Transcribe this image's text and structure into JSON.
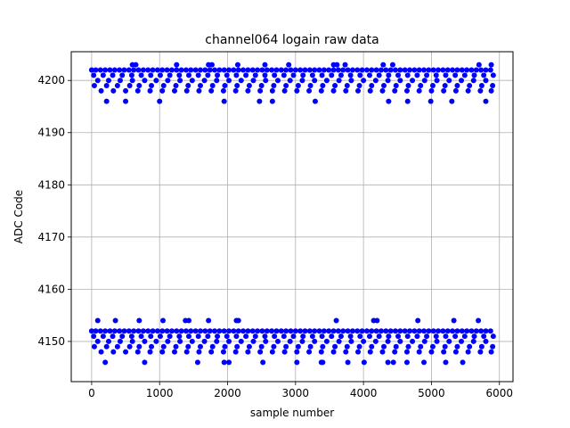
{
  "chart_data": {
    "type": "scatter",
    "title": "channel064 logain raw data",
    "xlabel": "sample number",
    "ylabel": "ADC Code",
    "xlim": [
      -300,
      6200
    ],
    "ylim": [
      4142.3,
      4205.5
    ],
    "xticks": [
      0,
      1000,
      2000,
      3000,
      4000,
      5000,
      6000
    ],
    "yticks": [
      4150,
      4160,
      4170,
      4180,
      4190,
      4200
    ],
    "grid": true,
    "marker_color": "#0000ff",
    "series": [
      {
        "x": [
          0,
          60,
          130,
          200,
          270,
          340,
          410,
          480,
          550,
          620,
          690,
          760,
          830,
          900,
          970,
          1040,
          1110,
          1180,
          1250,
          1320,
          1390,
          1460,
          1530,
          1600,
          1670,
          1740,
          1810,
          1880,
          1950,
          2020,
          2090,
          2160,
          2230,
          2300,
          2370,
          2440,
          2510,
          2580,
          2650,
          2720,
          2790,
          2860,
          2930,
          3000,
          3070,
          3140,
          3210,
          3280,
          3350,
          3420,
          3490,
          3560,
          3630,
          3700,
          3770,
          3840,
          3910,
          3980,
          4050,
          4120,
          4190,
          4260,
          4330,
          4400,
          4470,
          4540,
          4610,
          4680,
          4750,
          4820,
          4890,
          4960,
          5030,
          5100,
          5170,
          5240,
          5310,
          5380,
          5450,
          5520,
          5590,
          5660,
          5730,
          5800,
          5870,
          30,
          170,
          310,
          450,
          590,
          730,
          870,
          1010,
          1150,
          1290,
          1430,
          1570,
          1710,
          1850,
          1990,
          2130,
          2270,
          2410,
          2550,
          2690,
          2830,
          2970,
          3110,
          3250,
          3390,
          3530,
          3670,
          3810,
          3950,
          4090,
          4230,
          4370,
          4510,
          4650,
          4790,
          4930,
          5070,
          5210,
          5350,
          5490,
          5630,
          5770,
          5910,
          90,
          250,
          420,
          600,
          780,
          950,
          1120,
          1300,
          1480,
          1660,
          1840,
          2020,
          2200,
          2380,
          2560,
          2740,
          2920,
          3100,
          3280,
          3460,
          3640,
          3820,
          4000,
          4180,
          4360,
          4540,
          4720,
          4900,
          5080,
          5260,
          5440,
          5620,
          5800,
          40,
          220,
          380,
          560,
          700,
          880,
          1060,
          1240,
          1420,
          1600,
          1780,
          1960,
          2140,
          2320,
          2500,
          2680,
          2860,
          3040,
          3220,
          3400,
          3580,
          3760,
          3940,
          4120,
          4300,
          4480,
          4660,
          4840,
          5020,
          5200,
          5380,
          5560,
          5740,
          5900,
          140,
          320,
          500,
          680,
          860,
          1040,
          1220,
          1400,
          1580,
          1760,
          1940,
          2120,
          2300,
          2480,
          2660,
          2840,
          3020,
          3200,
          3380,
          3560,
          3740,
          3920,
          4100,
          4280,
          4460,
          4640,
          4820,
          5000,
          5180,
          5360,
          5540,
          5720,
          5880,
          600,
          650,
          1250,
          1720,
          1770,
          2150,
          2550,
          2900,
          3560,
          3610,
          3730,
          4290,
          4430,
          5700,
          5880,
          220,
          500,
          1000,
          1950,
          2470,
          2660,
          3290,
          4370,
          4650,
          4990,
          5300,
          5800,
          0,
          60,
          130,
          200,
          270,
          340,
          410,
          480,
          550,
          620,
          690,
          760,
          830,
          900,
          970,
          1040,
          1110,
          1180,
          1250,
          1320,
          1390,
          1460,
          1530,
          1600,
          1670,
          1740,
          1810,
          1880,
          1950,
          2020,
          2090,
          2160,
          2230,
          2300,
          2370,
          2440,
          2510,
          2580,
          2650,
          2720,
          2790,
          2860,
          2930,
          3000,
          3070,
          3140,
          3210,
          3280,
          3350,
          3420,
          3490,
          3560,
          3630,
          3700,
          3770,
          3840,
          3910,
          3980,
          4050,
          4120,
          4190,
          4260,
          4330,
          4400,
          4470,
          4540,
          4610,
          4680,
          4750,
          4820,
          4890,
          4960,
          5030,
          5100,
          5170,
          5240,
          5310,
          5380,
          5450,
          5520,
          5590,
          5660,
          5730,
          5800,
          5870,
          30,
          170,
          310,
          450,
          590,
          730,
          870,
          1010,
          1150,
          1290,
          1430,
          1570,
          1710,
          1850,
          1990,
          2130,
          2270,
          2410,
          2550,
          2690,
          2830,
          2970,
          3110,
          3250,
          3390,
          3530,
          3670,
          3810,
          3950,
          4090,
          4230,
          4370,
          4510,
          4650,
          4790,
          4930,
          5070,
          5210,
          5350,
          5490,
          5630,
          5770,
          5910,
          90,
          250,
          420,
          600,
          780,
          950,
          1120,
          1300,
          1480,
          1660,
          1840,
          2020,
          2200,
          2380,
          2560,
          2740,
          2920,
          3100,
          3280,
          3460,
          3640,
          3820,
          4000,
          4180,
          4360,
          4540,
          4720,
          4900,
          5080,
          5260,
          5440,
          5620,
          5800,
          40,
          220,
          380,
          560,
          700,
          880,
          1060,
          1240,
          1420,
          1600,
          1780,
          1960,
          2140,
          2320,
          2500,
          2680,
          2860,
          3040,
          3220,
          3400,
          3580,
          3760,
          3940,
          4120,
          4300,
          4480,
          4660,
          4840,
          5020,
          5200,
          5380,
          5560,
          5740,
          5900,
          140,
          320,
          500,
          680,
          860,
          1040,
          1220,
          1400,
          1580,
          1760,
          1940,
          2120,
          2300,
          2480,
          2660,
          2840,
          3020,
          3200,
          3380,
          3560,
          3740,
          3920,
          4100,
          4280,
          4460,
          4640,
          4820,
          5000,
          5180,
          5360,
          5540,
          5720,
          5880,
          90,
          350,
          700,
          1050,
          1380,
          1430,
          1720,
          2130,
          2160,
          3600,
          4150,
          4200,
          4800,
          5330,
          5690,
          200,
          780,
          1560,
          1950,
          2020,
          2520,
          3020,
          3380,
          3400,
          3770,
          4010,
          4360,
          4440,
          4640,
          4890,
          5210,
          5460
        ],
        "y": [
          4202,
          4202,
          4202,
          4202,
          4202,
          4202,
          4202,
          4202,
          4202,
          4202,
          4202,
          4202,
          4202,
          4202,
          4202,
          4202,
          4202,
          4202,
          4202,
          4202,
          4202,
          4202,
          4202,
          4202,
          4202,
          4202,
          4202,
          4202,
          4202,
          4202,
          4202,
          4202,
          4202,
          4202,
          4202,
          4202,
          4202,
          4202,
          4202,
          4202,
          4202,
          4202,
          4202,
          4202,
          4202,
          4202,
          4202,
          4202,
          4202,
          4202,
          4202,
          4202,
          4202,
          4202,
          4202,
          4202,
          4202,
          4202,
          4202,
          4202,
          4202,
          4202,
          4202,
          4202,
          4202,
          4202,
          4202,
          4202,
          4202,
          4202,
          4202,
          4202,
          4202,
          4202,
          4202,
          4202,
          4202,
          4202,
          4202,
          4202,
          4202,
          4202,
          4202,
          4202,
          4202,
          4201,
          4201,
          4201,
          4201,
          4201,
          4201,
          4201,
          4201,
          4201,
          4201,
          4201,
          4201,
          4201,
          4201,
          4201,
          4201,
          4201,
          4201,
          4201,
          4201,
          4201,
          4201,
          4201,
          4201,
          4201,
          4201,
          4201,
          4201,
          4201,
          4201,
          4201,
          4201,
          4201,
          4201,
          4201,
          4201,
          4201,
          4201,
          4201,
          4201,
          4201,
          4201,
          4201,
          4200,
          4200,
          4200,
          4200,
          4200,
          4200,
          4200,
          4200,
          4200,
          4200,
          4200,
          4200,
          4200,
          4200,
          4200,
          4200,
          4200,
          4200,
          4200,
          4200,
          4200,
          4200,
          4200,
          4200,
          4200,
          4200,
          4200,
          4200,
          4200,
          4200,
          4200,
          4200,
          4200,
          4199,
          4199,
          4199,
          4199,
          4199,
          4199,
          4199,
          4199,
          4199,
          4199,
          4199,
          4199,
          4199,
          4199,
          4199,
          4199,
          4199,
          4199,
          4199,
          4199,
          4199,
          4199,
          4199,
          4199,
          4199,
          4199,
          4199,
          4199,
          4199,
          4199,
          4199,
          4199,
          4199,
          4199,
          4198,
          4198,
          4198,
          4198,
          4198,
          4198,
          4198,
          4198,
          4198,
          4198,
          4198,
          4198,
          4198,
          4198,
          4198,
          4198,
          4198,
          4198,
          4198,
          4198,
          4198,
          4198,
          4198,
          4198,
          4198,
          4198,
          4198,
          4198,
          4198,
          4198,
          4198,
          4198,
          4198,
          4203,
          4203,
          4203,
          4203,
          4203,
          4203,
          4203,
          4203,
          4203,
          4203,
          4203,
          4203,
          4203,
          4203,
          4203,
          4196,
          4196,
          4196,
          4196,
          4196,
          4196,
          4196,
          4196,
          4196,
          4196,
          4196,
          4196,
          4152,
          4152,
          4152,
          4152,
          4152,
          4152,
          4152,
          4152,
          4152,
          4152,
          4152,
          4152,
          4152,
          4152,
          4152,
          4152,
          4152,
          4152,
          4152,
          4152,
          4152,
          4152,
          4152,
          4152,
          4152,
          4152,
          4152,
          4152,
          4152,
          4152,
          4152,
          4152,
          4152,
          4152,
          4152,
          4152,
          4152,
          4152,
          4152,
          4152,
          4152,
          4152,
          4152,
          4152,
          4152,
          4152,
          4152,
          4152,
          4152,
          4152,
          4152,
          4152,
          4152,
          4152,
          4152,
          4152,
          4152,
          4152,
          4152,
          4152,
          4152,
          4152,
          4152,
          4152,
          4152,
          4152,
          4152,
          4152,
          4152,
          4152,
          4152,
          4152,
          4152,
          4152,
          4152,
          4152,
          4152,
          4152,
          4152,
          4152,
          4152,
          4152,
          4152,
          4152,
          4152,
          4151,
          4151,
          4151,
          4151,
          4151,
          4151,
          4151,
          4151,
          4151,
          4151,
          4151,
          4151,
          4151,
          4151,
          4151,
          4151,
          4151,
          4151,
          4151,
          4151,
          4151,
          4151,
          4151,
          4151,
          4151,
          4151,
          4151,
          4151,
          4151,
          4151,
          4151,
          4151,
          4151,
          4151,
          4151,
          4151,
          4151,
          4151,
          4151,
          4151,
          4151,
          4151,
          4151,
          4150,
          4150,
          4150,
          4150,
          4150,
          4150,
          4150,
          4150,
          4150,
          4150,
          4150,
          4150,
          4150,
          4150,
          4150,
          4150,
          4150,
          4150,
          4150,
          4150,
          4150,
          4150,
          4150,
          4150,
          4150,
          4150,
          4150,
          4150,
          4150,
          4150,
          4150,
          4150,
          4150,
          4149,
          4149,
          4149,
          4149,
          4149,
          4149,
          4149,
          4149,
          4149,
          4149,
          4149,
          4149,
          4149,
          4149,
          4149,
          4149,
          4149,
          4149,
          4149,
          4149,
          4149,
          4149,
          4149,
          4149,
          4149,
          4149,
          4149,
          4149,
          4149,
          4149,
          4149,
          4149,
          4149,
          4149,
          4148,
          4148,
          4148,
          4148,
          4148,
          4148,
          4148,
          4148,
          4148,
          4148,
          4148,
          4148,
          4148,
          4148,
          4148,
          4148,
          4148,
          4148,
          4148,
          4148,
          4148,
          4148,
          4148,
          4148,
          4148,
          4148,
          4148,
          4148,
          4148,
          4148,
          4148,
          4148,
          4148,
          4154,
          4154,
          4154,
          4154,
          4154,
          4154,
          4154,
          4154,
          4154,
          4154,
          4154,
          4154,
          4154,
          4154,
          4154,
          4146,
          4146,
          4146,
          4146,
          4146,
          4146,
          4146,
          4146,
          4146,
          4146,
          4146,
          4146,
          4146,
          4146,
          4146,
          4146,
          4146
        ]
      }
    ]
  }
}
